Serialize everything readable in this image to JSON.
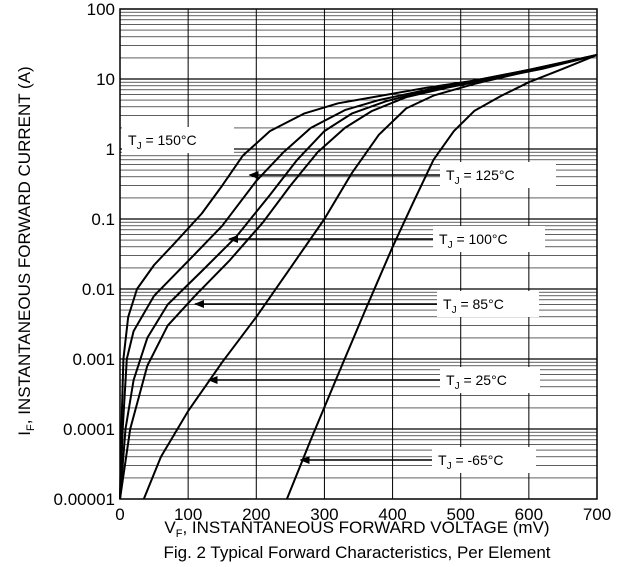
{
  "chart_data": {
    "type": "line",
    "title": "",
    "caption": "Fig. 2  Typical Forward Characteristics, Per Element",
    "xlabel": "V",
    "xlabel_sub": "F",
    "xlabel_rest": ", INSTANTANEOUS FORWARD VOLTAGE (mV)",
    "ylabel": "I",
    "ylabel_sub": "F",
    "ylabel_rest": ", INSTANTANEOUS FORWARD CURRENT (A)",
    "x_scale": "linear",
    "y_scale": "log",
    "xlim": [
      0,
      700
    ],
    "ylim": [
      1e-05,
      100
    ],
    "x_ticks": [
      0,
      100,
      200,
      300,
      400,
      500,
      600,
      700
    ],
    "x_tick_labels": [
      "0",
      "100",
      "200",
      "300",
      "400",
      "500",
      "600",
      "700"
    ],
    "y_ticks": [
      1e-05,
      0.0001,
      0.001,
      0.01,
      0.1,
      1,
      10,
      100
    ],
    "y_tick_labels": [
      "0.00001",
      "0.0001",
      "0.001",
      "0.01",
      "0.1",
      "1",
      "10",
      "100"
    ],
    "grid": true,
    "series": [
      {
        "name": "T_J = 150°C",
        "label_text": "T",
        "label_sub": "J",
        "label_rest": " = 150°C",
        "points": [
          [
            0,
            1e-05
          ],
          [
            2,
            0.0001
          ],
          [
            5,
            0.001
          ],
          [
            12,
            0.004
          ],
          [
            25,
            0.01
          ],
          [
            50,
            0.022
          ],
          [
            80,
            0.045
          ],
          [
            120,
            0.12
          ],
          [
            150,
            0.3
          ],
          [
            180,
            0.8
          ],
          [
            220,
            1.8
          ],
          [
            270,
            3.2
          ],
          [
            320,
            4.5
          ],
          [
            380,
            5.7
          ],
          [
            450,
            7.5
          ],
          [
            520,
            9.5
          ],
          [
            600,
            13
          ],
          [
            700,
            22
          ]
        ]
      },
      {
        "name": "T_J = 125°C",
        "label_text": "T",
        "label_sub": "J",
        "label_rest": " = 125°C",
        "points": [
          [
            0,
            1e-05
          ],
          [
            4,
            0.0001
          ],
          [
            10,
            0.001
          ],
          [
            20,
            0.0025
          ],
          [
            50,
            0.008
          ],
          [
            100,
            0.025
          ],
          [
            150,
            0.08
          ],
          [
            200,
            0.35
          ],
          [
            240,
            0.9
          ],
          [
            280,
            2
          ],
          [
            330,
            3.6
          ],
          [
            380,
            5
          ],
          [
            450,
            7
          ],
          [
            520,
            9.5
          ],
          [
            600,
            13.5
          ],
          [
            700,
            22
          ]
        ]
      },
      {
        "name": "T_J = 100°C",
        "label_text": "T",
        "label_sub": "J",
        "label_rest": " = 100°C",
        "points": [
          [
            0,
            1e-05
          ],
          [
            8,
            0.0001
          ],
          [
            20,
            0.0005
          ],
          [
            40,
            0.002
          ],
          [
            70,
            0.006
          ],
          [
            120,
            0.018
          ],
          [
            170,
            0.055
          ],
          [
            220,
            0.22
          ],
          [
            260,
            0.7
          ],
          [
            300,
            1.8
          ],
          [
            340,
            3.2
          ],
          [
            390,
            4.8
          ],
          [
            450,
            6.8
          ],
          [
            520,
            9.5
          ],
          [
            600,
            13.5
          ],
          [
            700,
            22
          ]
        ]
      },
      {
        "name": "T_J = 85°C",
        "label_text": "T",
        "label_sub": "J",
        "label_rest": " = 85°C",
        "points": [
          [
            0,
            1e-05
          ],
          [
            15,
            0.0001
          ],
          [
            40,
            0.0008
          ],
          [
            70,
            0.003
          ],
          [
            110,
            0.008
          ],
          [
            160,
            0.025
          ],
          [
            210,
            0.09
          ],
          [
            250,
            0.3
          ],
          [
            290,
            0.9
          ],
          [
            330,
            2
          ],
          [
            370,
            3.5
          ],
          [
            420,
            5.5
          ],
          [
            480,
            7.5
          ],
          [
            540,
            9.8
          ],
          [
            620,
            14
          ],
          [
            700,
            22
          ]
        ]
      },
      {
        "name": "T_J = 25°C",
        "label_text": "T",
        "label_sub": "J",
        "label_rest": " = 25°C",
        "points": [
          [
            35,
            1e-05
          ],
          [
            60,
            4e-05
          ],
          [
            100,
            0.00018
          ],
          [
            150,
            0.0009
          ],
          [
            200,
            0.004
          ],
          [
            250,
            0.02
          ],
          [
            300,
            0.1
          ],
          [
            340,
            0.45
          ],
          [
            380,
            1.6
          ],
          [
            420,
            3.8
          ],
          [
            460,
            5.8
          ],
          [
            520,
            8.5
          ],
          [
            600,
            13
          ],
          [
            700,
            22
          ]
        ]
      },
      {
        "name": "T_J = -65°C",
        "label_text": "T",
        "label_sub": "J",
        "label_rest": " = -65°C",
        "points": [
          [
            245,
            1e-05
          ],
          [
            280,
            7e-05
          ],
          [
            320,
            0.0006
          ],
          [
            360,
            0.005
          ],
          [
            400,
            0.04
          ],
          [
            430,
            0.17
          ],
          [
            460,
            0.7
          ],
          [
            490,
            1.8
          ],
          [
            520,
            3.5
          ],
          [
            560,
            5.8
          ],
          [
            600,
            9
          ],
          [
            650,
            14
          ],
          [
            700,
            22
          ]
        ]
      }
    ],
    "annotations": [
      {
        "series": 0,
        "text": "T",
        "sub": "J",
        "rest": " = 150°C",
        "arrow": false
      },
      {
        "series": 1,
        "text": "T",
        "sub": "J",
        "rest": " = 125°C",
        "arrow": true,
        "arrow_to": [
          190,
          1.7
        ]
      },
      {
        "series": 2,
        "text": "T",
        "sub": "J",
        "rest": " = 100°C",
        "arrow": true,
        "arrow_to": [
          160,
          0.09
        ]
      },
      {
        "series": 3,
        "text": "T",
        "sub": "J",
        "rest": " = 85°C",
        "arrow": true,
        "arrow_to": [
          110,
          0.005
        ]
      },
      {
        "series": 4,
        "text": "T",
        "sub": "J",
        "rest": " = 25°C",
        "arrow": true,
        "arrow_to": [
          130,
          0.00028
        ]
      },
      {
        "series": 5,
        "text": "T",
        "sub": "J",
        "rest": " = -65°C",
        "arrow": true,
        "arrow_to": [
          265,
          1.7e-05
        ]
      }
    ]
  }
}
